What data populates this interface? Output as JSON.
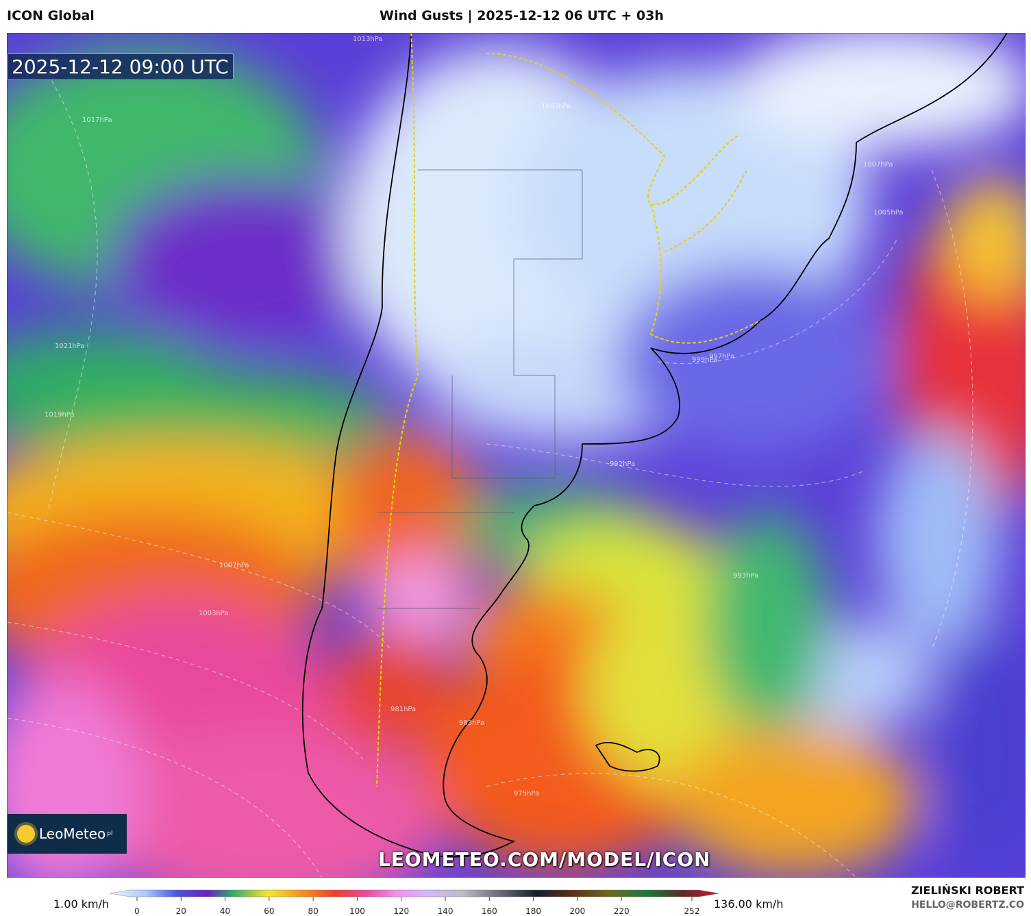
{
  "header": {
    "model": "ICON Global",
    "title": "Wind Gusts | 2025-12-12 06 UTC + 03h"
  },
  "timestamp": "2025-12-12 09:00 UTC",
  "logo": {
    "name": "LeoMeteo",
    "suffix": "pl"
  },
  "watermark": "LEOMETEO.COM/MODEL/ICON",
  "isobar_labels": [
    "1013hPa",
    "1017hPa",
    "1003hPa",
    "1007hPa",
    "1005hPa",
    "999hPa",
    "997hPa",
    "992hPa",
    "993hPa",
    "983hPa",
    "975hPa",
    "1021hPa",
    "1019hPa",
    "1007hPa",
    "1003hPa",
    "981hPa"
  ],
  "colorbar": {
    "min_label": "1.00 km/h",
    "max_label": "136.00 km/h",
    "ticks": [
      0,
      20,
      40,
      60,
      80,
      100,
      120,
      140,
      160,
      180,
      200,
      220,
      252
    ]
  },
  "footer": {
    "author": "ZIELIŃSKI ROBERT",
    "contact": "HELLO@ROBERTZ.CO"
  }
}
